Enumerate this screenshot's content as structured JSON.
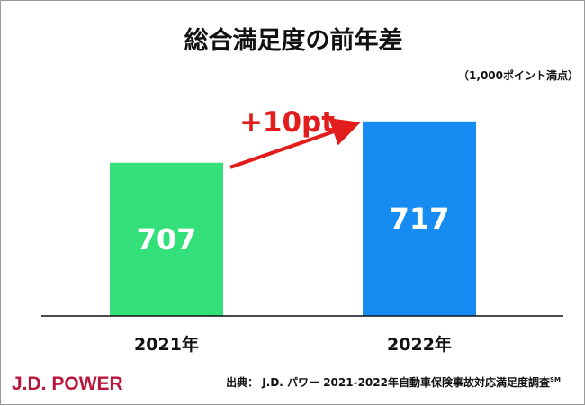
{
  "chart_data": {
    "type": "bar",
    "title": "総合満足度の前年差",
    "unit_note": "（1,000ポイント満点）",
    "categories": [
      "2021年",
      "2022年"
    ],
    "values": [
      707,
      717
    ],
    "value_labels": [
      "707",
      "717"
    ],
    "ylim": [
      670,
      720
    ],
    "bar_colors": [
      "#33e07a",
      "#168cf2"
    ],
    "grid": false,
    "annotation": {
      "text": "+10pt",
      "color": "#e31c1c",
      "from": "2021年",
      "to": "2022年"
    }
  },
  "footer": {
    "brand": "J.D. POWER",
    "brand_color": "#b8163a",
    "source": "出典： J.D. パワー 2021-2022年自動車保険事故対応満足度調査",
    "source_mark": "SM"
  }
}
